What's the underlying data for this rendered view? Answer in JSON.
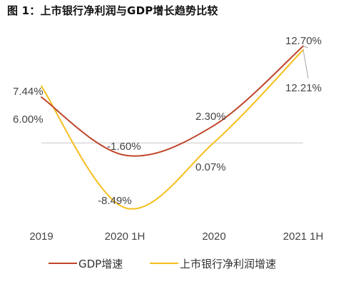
{
  "figure_title": "图 1：上市银行净利润与GDP增长趋势比较",
  "chart_data": {
    "type": "line",
    "title": "图 1：上市银行净利润与GDP增长趋势比较",
    "categories": [
      "2019",
      "2020 1H",
      "2020",
      "2021 1H"
    ],
    "series": [
      {
        "name": "GDP增速",
        "color": "#C0452A",
        "values": [
          6.0,
          -1.6,
          2.3,
          12.7
        ],
        "labels": [
          "6.00%",
          "-1.60%",
          "2.30%",
          "12.70%"
        ]
      },
      {
        "name": "上市银行净利润增速",
        "color": "#F5BE1C",
        "values": [
          7.44,
          -8.49,
          0.07,
          12.21
        ],
        "labels": [
          "7.44%",
          "-8.49%",
          "0.07%",
          "12.21%"
        ]
      }
    ],
    "ylim": [
      -11,
      15
    ],
    "zero_line": true,
    "smooth": true,
    "legend_position": "bottom",
    "xlabel": "",
    "ylabel": ""
  }
}
